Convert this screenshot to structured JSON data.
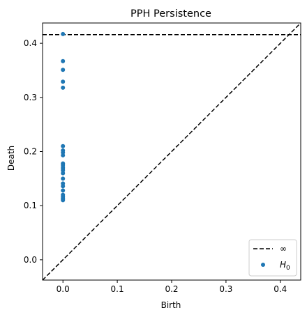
{
  "chart_data": {
    "type": "scatter",
    "title": "PPH Persistence",
    "xlabel": "Birth",
    "ylabel": "Death",
    "xlim": [
      -0.0375,
      0.4375
    ],
    "ylim": [
      -0.0375,
      0.4375
    ],
    "xticks": [
      0.0,
      0.1,
      0.2,
      0.3,
      0.4
    ],
    "yticks": [
      0.0,
      0.1,
      0.2,
      0.3,
      0.4
    ],
    "tick_labels_x": [
      "0.0",
      "0.1",
      "0.2",
      "0.3",
      "0.4"
    ],
    "tick_labels_y": [
      "0.0",
      "0.1",
      "0.2",
      "0.3",
      "0.4"
    ],
    "infinity_line_y": 0.416,
    "diagonal": true,
    "grid": false,
    "legend_position": "bottom-right",
    "legend": [
      {
        "label": "∞",
        "style": "dashed-line",
        "color": "#000000"
      },
      {
        "label_base": "H",
        "label_sub": "0",
        "style": "marker",
        "color": "#1f77b4"
      }
    ],
    "series": [
      {
        "name": "H0",
        "color": "#1f77b4",
        "x": [
          0,
          0,
          0,
          0,
          0,
          0,
          0,
          0,
          0,
          0,
          0,
          0,
          0,
          0,
          0,
          0,
          0,
          0,
          0,
          0,
          0,
          0,
          0,
          0
        ],
        "y": [
          0.417,
          0.367,
          0.351,
          0.329,
          0.318,
          0.21,
          0.202,
          0.198,
          0.193,
          0.178,
          0.175,
          0.171,
          0.168,
          0.165,
          0.16,
          0.15,
          0.141,
          0.136,
          0.128,
          0.12,
          0.117,
          0.114,
          0.112,
          0.11
        ]
      }
    ]
  }
}
